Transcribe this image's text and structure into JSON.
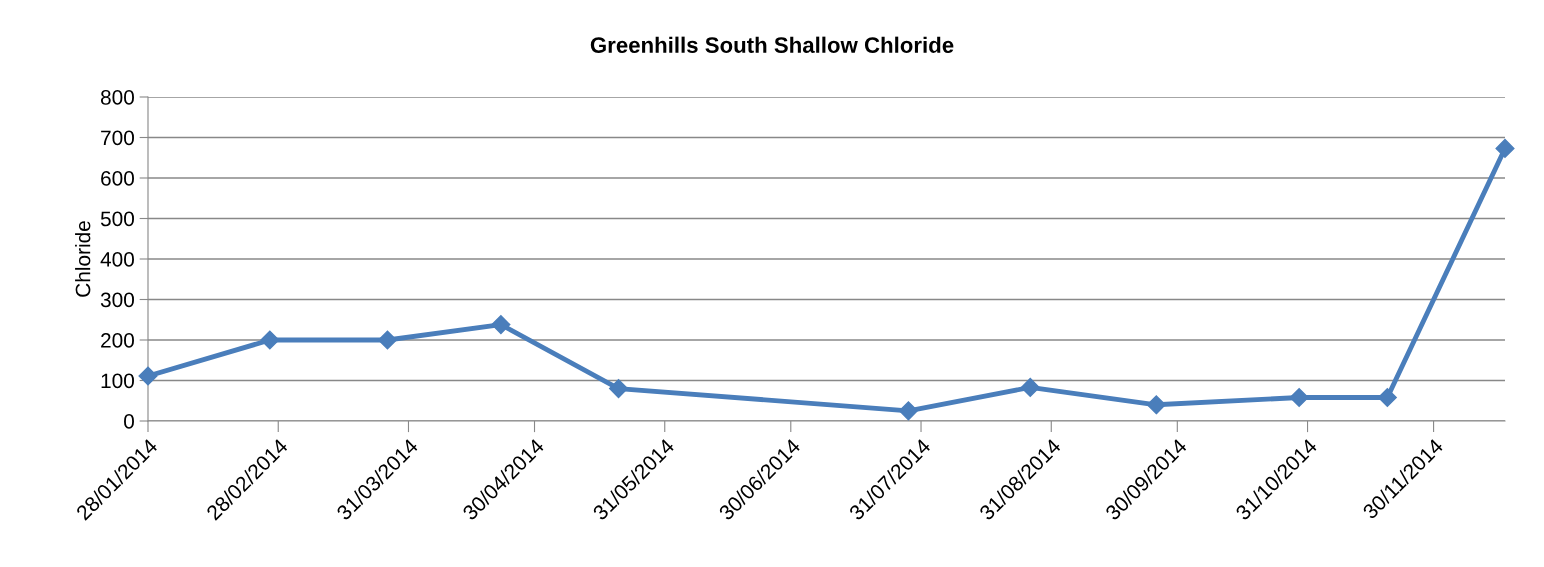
{
  "chart_data": {
    "type": "line",
    "title": "Greenhills South Shallow Chloride",
    "ylabel": "Chloride",
    "x": [
      "2014-01-28",
      "2014-02-26",
      "2014-03-26",
      "2014-04-22",
      "2014-05-20",
      "2014-07-28",
      "2014-08-26",
      "2014-09-25",
      "2014-10-29",
      "2014-11-19",
      "2014-12-17"
    ],
    "series": [
      {
        "color": "#4a7ebb",
        "values": [
          111,
          200,
          200,
          238,
          80,
          25,
          83,
          40,
          58,
          58,
          673
        ]
      }
    ],
    "xlim": [
      "2014-01-28",
      "2014-12-17"
    ],
    "xticks": [
      {
        "value": "2014-01-28",
        "label": "28/01/2014"
      },
      {
        "value": "2014-02-28",
        "label": "28/02/2014"
      },
      {
        "value": "2014-03-31",
        "label": "31/03/2014"
      },
      {
        "value": "2014-04-30",
        "label": "30/04/2014"
      },
      {
        "value": "2014-05-31",
        "label": "31/05/2014"
      },
      {
        "value": "2014-06-30",
        "label": "30/06/2014"
      },
      {
        "value": "2014-07-31",
        "label": "31/07/2014"
      },
      {
        "value": "2014-08-31",
        "label": "31/08/2014"
      },
      {
        "value": "2014-09-30",
        "label": "30/09/2014"
      },
      {
        "value": "2014-10-31",
        "label": "31/10/2014"
      },
      {
        "value": "2014-11-30",
        "label": "30/11/2014"
      }
    ],
    "ylim": [
      0,
      800
    ],
    "yticks": [
      0,
      100,
      200,
      300,
      400,
      500,
      600,
      700,
      800
    ],
    "grid": "y",
    "marker": "diamond",
    "line_style": "solid",
    "legend": false
  }
}
